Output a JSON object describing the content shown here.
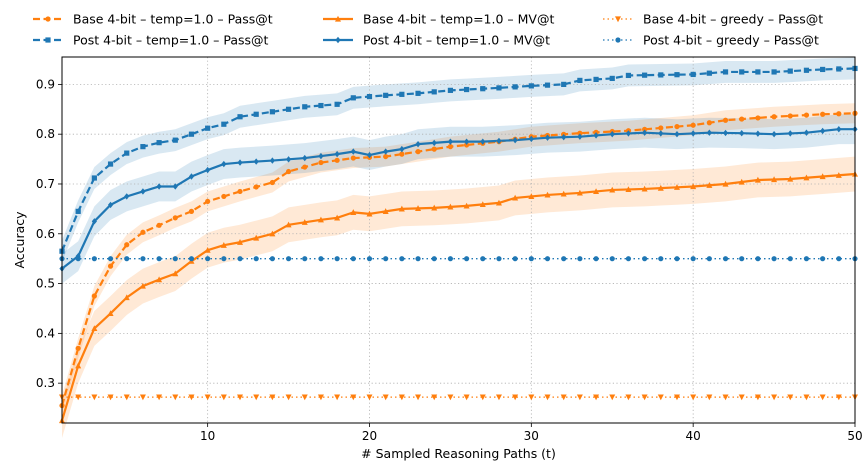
{
  "chart_data": {
    "type": "line",
    "xlabel": "# Sampled Reasoning Paths (t)",
    "ylabel": "Accuracy",
    "xlim": [
      1,
      50
    ],
    "ylim": [
      0.22,
      0.955
    ],
    "xticks": [
      10,
      20,
      30,
      40,
      50
    ],
    "yticks": [
      0.3,
      0.4,
      0.5,
      0.6,
      0.7,
      0.8,
      0.9
    ],
    "grid": true,
    "legend_position": "top",
    "series": [
      {
        "name": "Base 4-bit – temp=1.0 – Pass@t",
        "color": "#ff7f0e",
        "dash": "dashed",
        "marker": "dot",
        "band": 0.02,
        "anchors": [
          [
            1,
            0.255
          ],
          [
            2,
            0.37
          ],
          [
            3,
            0.475
          ],
          [
            4,
            0.535
          ],
          [
            5,
            0.578
          ],
          [
            6,
            0.603
          ],
          [
            7,
            0.617
          ],
          [
            8,
            0.632
          ],
          [
            9,
            0.645
          ],
          [
            10,
            0.665
          ],
          [
            11,
            0.675
          ],
          [
            12,
            0.685
          ],
          [
            14,
            0.703
          ],
          [
            15,
            0.725
          ],
          [
            17,
            0.743
          ],
          [
            19,
            0.752
          ],
          [
            21,
            0.755
          ],
          [
            23,
            0.765
          ],
          [
            25,
            0.775
          ],
          [
            28,
            0.785
          ],
          [
            30,
            0.795
          ],
          [
            33,
            0.802
          ],
          [
            36,
            0.807
          ],
          [
            40,
            0.818
          ],
          [
            42,
            0.828
          ],
          [
            45,
            0.835
          ],
          [
            48,
            0.84
          ],
          [
            50,
            0.842
          ]
        ]
      },
      {
        "name": "Post 4-bit – temp=1.0 – Pass@t",
        "color": "#1f77b4",
        "dash": "dashed",
        "marker": "square",
        "band": 0.022,
        "anchors": [
          [
            1,
            0.565
          ],
          [
            2,
            0.645
          ],
          [
            3,
            0.712
          ],
          [
            4,
            0.74
          ],
          [
            5,
            0.762
          ],
          [
            6,
            0.775
          ],
          [
            7,
            0.783
          ],
          [
            8,
            0.788
          ],
          [
            9,
            0.8
          ],
          [
            10,
            0.812
          ],
          [
            11,
            0.82
          ],
          [
            12,
            0.835
          ],
          [
            14,
            0.845
          ],
          [
            16,
            0.855
          ],
          [
            18,
            0.86
          ],
          [
            19,
            0.873
          ],
          [
            21,
            0.878
          ],
          [
            23,
            0.882
          ],
          [
            25,
            0.888
          ],
          [
            28,
            0.893
          ],
          [
            30,
            0.897
          ],
          [
            32,
            0.9
          ],
          [
            33,
            0.908
          ],
          [
            35,
            0.912
          ],
          [
            36,
            0.918
          ],
          [
            40,
            0.92
          ],
          [
            42,
            0.925
          ],
          [
            45,
            0.925
          ],
          [
            48,
            0.93
          ],
          [
            50,
            0.932
          ]
        ]
      },
      {
        "name": "Base 4-bit – temp=1.0 – MV@t",
        "color": "#ff7f0e",
        "dash": "solid",
        "marker": "triangle-up",
        "band": 0.035,
        "anchors": [
          [
            1,
            0.225
          ],
          [
            2,
            0.335
          ],
          [
            3,
            0.41
          ],
          [
            4,
            0.44
          ],
          [
            5,
            0.472
          ],
          [
            6,
            0.495
          ],
          [
            7,
            0.508
          ],
          [
            8,
            0.52
          ],
          [
            9,
            0.545
          ],
          [
            10,
            0.567
          ],
          [
            11,
            0.577
          ],
          [
            12,
            0.583
          ],
          [
            14,
            0.6
          ],
          [
            15,
            0.618
          ],
          [
            17,
            0.628
          ],
          [
            18,
            0.632
          ],
          [
            19,
            0.643
          ],
          [
            20,
            0.64
          ],
          [
            22,
            0.65
          ],
          [
            24,
            0.652
          ],
          [
            26,
            0.656
          ],
          [
            28,
            0.662
          ],
          [
            29,
            0.672
          ],
          [
            31,
            0.678
          ],
          [
            33,
            0.682
          ],
          [
            35,
            0.688
          ],
          [
            37,
            0.69
          ],
          [
            40,
            0.695
          ],
          [
            42,
            0.7
          ],
          [
            44,
            0.708
          ],
          [
            46,
            0.71
          ],
          [
            48,
            0.715
          ],
          [
            50,
            0.72
          ]
        ]
      },
      {
        "name": "Post 4-bit – temp=1.0 – MV@t",
        "color": "#1f77b4",
        "dash": "solid",
        "marker": "diamond",
        "band": 0.03,
        "anchors": [
          [
            1,
            0.53
          ],
          [
            2,
            0.555
          ],
          [
            3,
            0.625
          ],
          [
            4,
            0.658
          ],
          [
            5,
            0.675
          ],
          [
            6,
            0.685
          ],
          [
            7,
            0.695
          ],
          [
            8,
            0.695
          ],
          [
            9,
            0.715
          ],
          [
            10,
            0.728
          ],
          [
            11,
            0.74
          ],
          [
            12,
            0.743
          ],
          [
            14,
            0.747
          ],
          [
            16,
            0.752
          ],
          [
            18,
            0.76
          ],
          [
            19,
            0.765
          ],
          [
            20,
            0.758
          ],
          [
            21,
            0.765
          ],
          [
            22,
            0.77
          ],
          [
            23,
            0.78
          ],
          [
            25,
            0.785
          ],
          [
            27,
            0.785
          ],
          [
            29,
            0.788
          ],
          [
            31,
            0.793
          ],
          [
            33,
            0.795
          ],
          [
            35,
            0.8
          ],
          [
            37,
            0.803
          ],
          [
            39,
            0.8
          ],
          [
            41,
            0.803
          ],
          [
            43,
            0.802
          ],
          [
            45,
            0.8
          ],
          [
            47,
            0.803
          ],
          [
            49,
            0.81
          ],
          [
            50,
            0.81
          ]
        ]
      },
      {
        "name": "Base 4-bit – greedy – Pass@t",
        "color": "#ff7f0e",
        "dash": "dotted",
        "marker": "triangle-down",
        "band": 0,
        "anchors": [
          [
            1,
            0.272
          ],
          [
            50,
            0.272
          ]
        ]
      },
      {
        "name": "Post 4-bit – greedy – Pass@t",
        "color": "#1f77b4",
        "dash": "dotted",
        "marker": "dot",
        "band": 0,
        "anchors": [
          [
            1,
            0.55
          ],
          [
            50,
            0.55
          ]
        ]
      }
    ]
  }
}
